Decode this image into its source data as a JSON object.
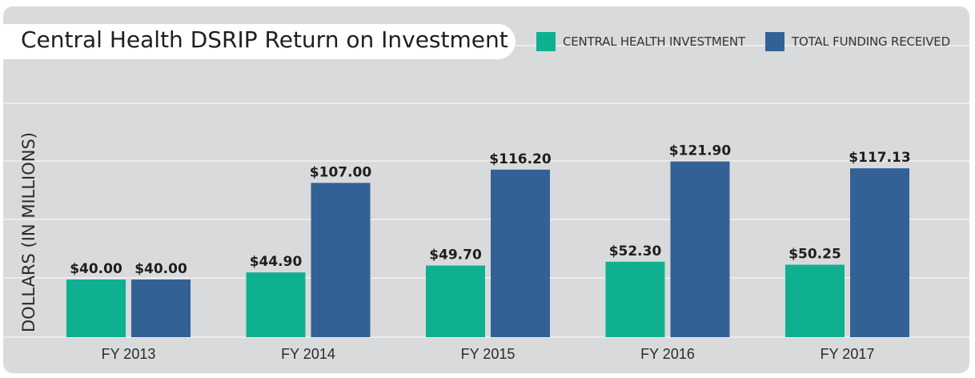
{
  "chart_data": {
    "type": "bar",
    "title": "Central Health DSRIP Return on Investment",
    "ylabel": "DOLLARS (IN MILLIONS)",
    "categories": [
      "FY 2013",
      "FY 2014",
      "FY 2015",
      "FY 2016",
      "FY 2017"
    ],
    "series": [
      {
        "name": "CENTRAL HEALTH INVESTMENT",
        "color": "#0fb090",
        "values": [
          40.0,
          44.9,
          49.7,
          52.3,
          50.25
        ],
        "labels": [
          "$40.00",
          "$44.90",
          "$49.70",
          "$52.30",
          "$50.25"
        ]
      },
      {
        "name": "TOTAL FUNDING RECEIVED",
        "color": "#336196",
        "values": [
          40.0,
          107.0,
          116.2,
          121.9,
          117.13
        ],
        "labels": [
          "$40.00",
          "$107.00",
          "$116.20",
          "$121.90",
          "$117.13"
        ]
      }
    ],
    "grid": true,
    "legend": "top-right"
  }
}
